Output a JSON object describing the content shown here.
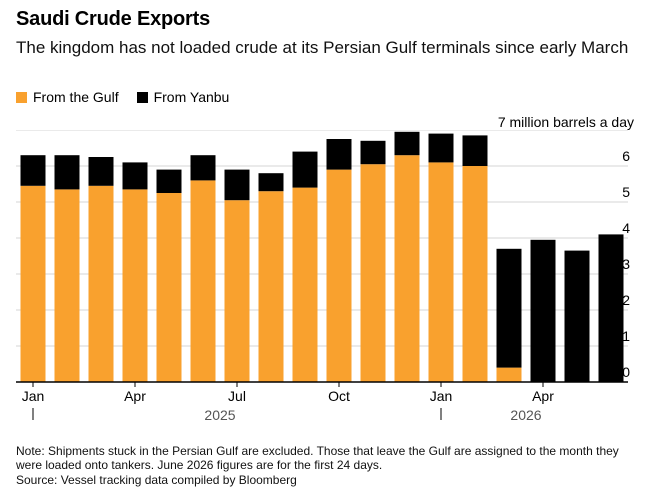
{
  "header": {
    "title": "Saudi Crude Exports",
    "subtitle": "The kingdom has not loaded crude at its Persian Gulf terminals since early March"
  },
  "legend": {
    "items": [
      {
        "label": "From the Gulf",
        "color": "#f9a12e"
      },
      {
        "label": "From Yanbu",
        "color": "#000000"
      }
    ]
  },
  "unit_label": "7 million barrels a day",
  "footer": {
    "note": "Note: Shipments stuck in the Persian Gulf are excluded. Those that leave the Gulf are assigned to the month they were loaded onto tankers. June 2026 figures are for the first 24 days.",
    "source": "Source: Vessel tracking data compiled by Bloomberg"
  },
  "chart_data": {
    "type": "bar",
    "stacked": true,
    "categories": [
      "Jan 2025",
      "Feb 2025",
      "Mar 2025",
      "Apr 2025",
      "May 2025",
      "Jun 2025",
      "Jul 2025",
      "Aug 2025",
      "Sep 2025",
      "Oct 2025",
      "Nov 2025",
      "Dec 2025",
      "Jan 2026",
      "Feb 2026",
      "Mar 2026",
      "Apr 2026",
      "May 2026",
      "Jun 2026"
    ],
    "series": [
      {
        "name": "From the Gulf",
        "color": "#f9a12e",
        "values": [
          5.45,
          5.35,
          5.45,
          5.35,
          5.25,
          5.6,
          5.05,
          5.3,
          5.4,
          5.9,
          6.05,
          6.3,
          6.1,
          6.0,
          0.4,
          0,
          0,
          0
        ]
      },
      {
        "name": "From Yanbu",
        "color": "#000000",
        "values": [
          0.85,
          0.95,
          0.8,
          0.75,
          0.65,
          0.7,
          0.85,
          0.5,
          1.0,
          0.85,
          0.65,
          0.65,
          0.8,
          0.85,
          3.3,
          3.95,
          3.65,
          4.1
        ]
      }
    ],
    "ylim": [
      0,
      7
    ],
    "yticks": [
      0,
      1,
      2,
      3,
      4,
      5,
      6
    ],
    "x_tick_labels": [
      {
        "index": 0,
        "label": "Jan"
      },
      {
        "index": 3,
        "label": "Apr"
      },
      {
        "index": 6,
        "label": "Jul"
      },
      {
        "index": 9,
        "label": "Oct"
      },
      {
        "index": 12,
        "label": "Jan"
      },
      {
        "index": 15,
        "label": "Apr"
      }
    ],
    "year_labels": [
      {
        "label": "2025",
        "from_index": 0,
        "to_index": 11
      },
      {
        "label": "2026",
        "from_index": 12,
        "to_index": 17
      }
    ],
    "grid": true,
    "ytick_position": "right"
  }
}
